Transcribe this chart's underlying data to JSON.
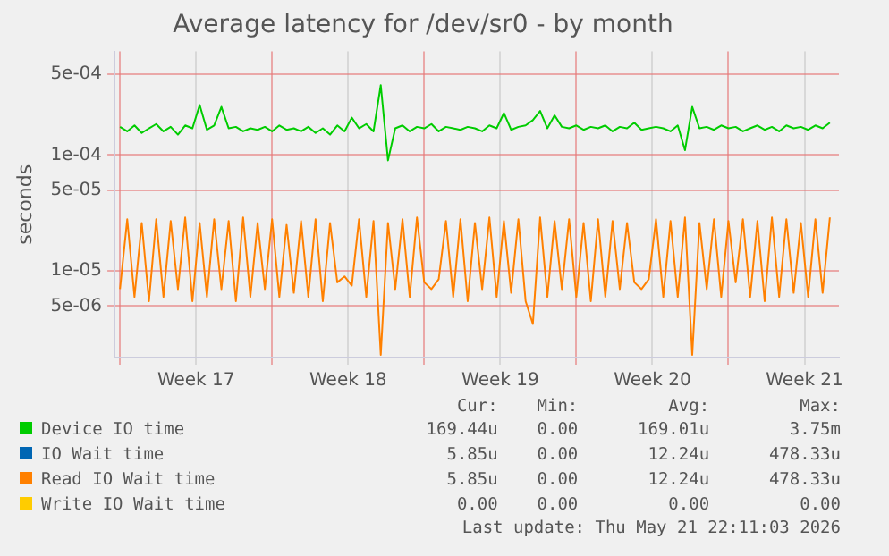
{
  "chart_data": {
    "type": "line",
    "title": "Average latency for /dev/sr0 - by month",
    "ylabel": "seconds",
    "log": "y",
    "grid": true,
    "legend": "bottom",
    "marker": "none",
    "line_style": "solid",
    "x": [
      "2026-04-20T00:00",
      "2026-04-20T08:00",
      "2026-04-20T16:00",
      "2026-04-21T00:00",
      "2026-04-21T08:00",
      "2026-04-21T16:00",
      "2026-04-22T00:00",
      "2026-04-22T08:00",
      "2026-04-22T16:00",
      "2026-04-23T00:00",
      "2026-04-23T08:00",
      "2026-04-23T16:00",
      "2026-04-24T00:00",
      "2026-04-24T08:00",
      "2026-04-24T16:00",
      "2026-04-25T00:00",
      "2026-04-25T08:00",
      "2026-04-25T16:00",
      "2026-04-26T00:00",
      "2026-04-26T08:00",
      "2026-04-26T16:00",
      "2026-04-27T00:00",
      "2026-04-27T08:00",
      "2026-04-27T16:00",
      "2026-04-28T00:00",
      "2026-04-28T08:00",
      "2026-04-28T16:00",
      "2026-04-29T00:00",
      "2026-04-29T08:00",
      "2026-04-29T16:00",
      "2026-04-30T00:00",
      "2026-04-30T08:00",
      "2026-04-30T16:00",
      "2026-05-01T00:00",
      "2026-05-01T08:00",
      "2026-05-01T16:00",
      "2026-05-02T00:00",
      "2026-05-02T08:00",
      "2026-05-02T16:00",
      "2026-05-03T00:00",
      "2026-05-03T08:00",
      "2026-05-03T16:00",
      "2026-05-04T00:00",
      "2026-05-04T08:00",
      "2026-05-04T16:00",
      "2026-05-05T00:00",
      "2026-05-05T08:00",
      "2026-05-05T16:00",
      "2026-05-06T00:00",
      "2026-05-06T08:00",
      "2026-05-06T16:00",
      "2026-05-07T00:00",
      "2026-05-07T08:00",
      "2026-05-07T16:00",
      "2026-05-08T00:00",
      "2026-05-08T08:00",
      "2026-05-08T16:00",
      "2026-05-09T00:00",
      "2026-05-09T08:00",
      "2026-05-09T16:00",
      "2026-05-10T00:00",
      "2026-05-10T08:00",
      "2026-05-10T16:00",
      "2026-05-11T00:00",
      "2026-05-11T08:00",
      "2026-05-11T16:00",
      "2026-05-12T00:00",
      "2026-05-12T08:00",
      "2026-05-12T16:00",
      "2026-05-13T00:00",
      "2026-05-13T08:00",
      "2026-05-13T16:00",
      "2026-05-14T00:00",
      "2026-05-14T08:00",
      "2026-05-14T16:00",
      "2026-05-15T00:00",
      "2026-05-15T08:00",
      "2026-05-15T16:00",
      "2026-05-16T00:00",
      "2026-05-16T08:00",
      "2026-05-16T16:00",
      "2026-05-17T00:00",
      "2026-05-17T08:00",
      "2026-05-17T16:00",
      "2026-05-18T00:00",
      "2026-05-18T08:00",
      "2026-05-18T16:00",
      "2026-05-19T00:00",
      "2026-05-19T08:00",
      "2026-05-19T16:00",
      "2026-05-20T00:00",
      "2026-05-20T08:00",
      "2026-05-20T16:00",
      "2026-05-21T00:00",
      "2026-05-21T08:00",
      "2026-05-21T16:00",
      "2026-05-22T00:00",
      "2026-05-22T08:00",
      "2026-05-22T16:00"
    ],
    "xlim": [
      "2026-04-19T18:00",
      "2026-05-23T02:00"
    ],
    "xticks": [
      {
        "value": "2026-04-20T00:00",
        "label": null
      },
      {
        "value": "2026-04-23T12:00",
        "label": "Week 17"
      },
      {
        "value": "2026-04-27T00:00",
        "label": null
      },
      {
        "value": "2026-04-30T12:00",
        "label": "Week 18"
      },
      {
        "value": "2026-05-04T00:00",
        "label": null
      },
      {
        "value": "2026-05-07T12:00",
        "label": "Week 19"
      },
      {
        "value": "2026-05-11T00:00",
        "label": null
      },
      {
        "value": "2026-05-14T12:00",
        "label": "Week 20"
      },
      {
        "value": "2026-05-18T00:00",
        "label": null
      },
      {
        "value": "2026-05-21T12:00",
        "label": "Week 21"
      }
    ],
    "ylim": [
      1.8e-06,
      0.00078
    ],
    "yticks": [
      {
        "value": 5e-06,
        "label": "5e-06"
      },
      {
        "value": 1e-05,
        "label": "1e-05"
      },
      {
        "value": 5e-05,
        "label": "5e-05"
      },
      {
        "value": 0.0001,
        "label": "1e-04"
      },
      {
        "value": 0.0005,
        "label": "5e-04"
      }
    ],
    "series": [
      {
        "name": "Device IO time",
        "color": "#00cc00",
        "values": [
          0.000175,
          0.00016,
          0.00018,
          0.000155,
          0.00017,
          0.000185,
          0.00016,
          0.000175,
          0.00015,
          0.00018,
          0.00017,
          0.00027,
          0.000165,
          0.00018,
          0.00026,
          0.00017,
          0.000175,
          0.00016,
          0.00017,
          0.000165,
          0.000175,
          0.00016,
          0.00018,
          0.000165,
          0.00017,
          0.00016,
          0.000175,
          0.000155,
          0.00017,
          0.00015,
          0.00018,
          0.00016,
          0.00021,
          0.00017,
          0.000185,
          0.00016,
          0.0004,
          9e-05,
          0.00017,
          0.00018,
          0.00016,
          0.000175,
          0.00017,
          0.000185,
          0.00016,
          0.000175,
          0.00017,
          0.000165,
          0.000175,
          0.00017,
          0.00016,
          0.00018,
          0.00017,
          0.00023,
          0.000165,
          0.000175,
          0.00018,
          0.0002,
          0.00024,
          0.00017,
          0.00022,
          0.000175,
          0.00017,
          0.00018,
          0.000165,
          0.000175,
          0.00017,
          0.00018,
          0.00016,
          0.000175,
          0.00017,
          0.00019,
          0.000165,
          0.00017,
          0.000175,
          0.00017,
          0.00016,
          0.00018,
          0.00011,
          0.00026,
          0.00017,
          0.000175,
          0.000165,
          0.00018,
          0.00017,
          0.000175,
          0.00016,
          0.00017,
          0.00018,
          0.000165,
          0.000175,
          0.00016,
          0.00018,
          0.00017,
          0.000175,
          0.000165,
          0.00018,
          0.00017,
          0.00019
        ]
      },
      {
        "name": "IO Wait time",
        "color": "#0066b3",
        "values": [
          null,
          null,
          null,
          null,
          null,
          null,
          null,
          null,
          null,
          null,
          null,
          null,
          null,
          null,
          null,
          null,
          null,
          null,
          null,
          null,
          null,
          null,
          null,
          null,
          null,
          null,
          null,
          null,
          null,
          null,
          null,
          null,
          null,
          null,
          null,
          null,
          null,
          null,
          null,
          null,
          null,
          null,
          null,
          null,
          null,
          null,
          null,
          null,
          null,
          null,
          null,
          null,
          null,
          null,
          null,
          null,
          null,
          null,
          null,
          null,
          null,
          null,
          null,
          null,
          null,
          null,
          null,
          null,
          null,
          null,
          null,
          null,
          null,
          null,
          null,
          null,
          null,
          null,
          null,
          null,
          null,
          null,
          null,
          null,
          null,
          null,
          null,
          null,
          null,
          null,
          null,
          null,
          null,
          null,
          null,
          null,
          null,
          null,
          null
        ]
      },
      {
        "name": "Read IO Wait time",
        "color": "#ff8000",
        "values": [
          7e-06,
          2.8e-05,
          6e-06,
          2.6e-05,
          5.5e-06,
          2.8e-05,
          6e-06,
          2.7e-05,
          7e-06,
          2.9e-05,
          5.5e-06,
          2.6e-05,
          6e-06,
          2.8e-05,
          7e-06,
          2.7e-05,
          5.5e-06,
          2.9e-05,
          6e-06,
          2.6e-05,
          7e-06,
          2.8e-05,
          6e-06,
          2.5e-05,
          6.5e-06,
          2.7e-05,
          6e-06,
          2.8e-05,
          5.5e-06,
          2.6e-05,
          8e-06,
          9e-06,
          7.5e-06,
          2.8e-05,
          6e-06,
          2.7e-05,
          1.9e-06,
          2.6e-05,
          7e-06,
          2.8e-05,
          6e-06,
          2.9e-05,
          8e-06,
          7e-06,
          8.5e-06,
          2.7e-05,
          6e-06,
          2.8e-05,
          5.5e-06,
          2.6e-05,
          7e-06,
          2.9e-05,
          6e-06,
          2.7e-05,
          6.5e-06,
          2.8e-05,
          5.5e-06,
          3.5e-06,
          2.9e-05,
          6e-06,
          2.7e-05,
          7e-06,
          2.8e-05,
          6e-06,
          2.6e-05,
          5.5e-06,
          2.8e-05,
          6e-06,
          2.7e-05,
          7e-06,
          2.6e-05,
          8e-06,
          7e-06,
          8.5e-06,
          2.8e-05,
          6e-06,
          2.7e-05,
          6e-06,
          2.9e-05,
          1.9e-06,
          2.6e-05,
          7e-06,
          2.8e-05,
          6e-06,
          2.7e-05,
          8e-06,
          2.8e-05,
          6e-06,
          2.7e-05,
          5.5e-06,
          2.9e-05,
          6e-06,
          2.8e-05,
          6.5e-06,
          2.6e-05,
          6e-06,
          2.8e-05,
          6.5e-06,
          2.9e-05
        ]
      },
      {
        "name": "Write IO Wait time",
        "color": "#ffcc00",
        "values": [
          null,
          null,
          null,
          null,
          null,
          null,
          null,
          null,
          null,
          null,
          null,
          null,
          null,
          null,
          null,
          null,
          null,
          null,
          null,
          null,
          null,
          null,
          null,
          null,
          null,
          null,
          null,
          null,
          null,
          null,
          null,
          null,
          null,
          null,
          null,
          null,
          null,
          null,
          null,
          null,
          null,
          null,
          null,
          null,
          null,
          null,
          null,
          null,
          null,
          null,
          null,
          null,
          null,
          null,
          null,
          null,
          null,
          null,
          null,
          null,
          null,
          null,
          null,
          null,
          null,
          null,
          null,
          null,
          null,
          null,
          null,
          null,
          null,
          null,
          null,
          null,
          null,
          null,
          null,
          null,
          null,
          null,
          null,
          null,
          null,
          null,
          null,
          null,
          null,
          null,
          null,
          null,
          null,
          null,
          null,
          null,
          null,
          null,
          null
        ]
      }
    ],
    "annotations": [
      "Cur:",
      "Min:",
      "Avg:",
      "Max:",
      "169.44u",
      "0.00",
      "169.01u",
      "3.75m",
      "5.85u",
      "0.00",
      "12.24u",
      "478.33u",
      "5.85u",
      "0.00",
      "12.24u",
      "478.33u",
      "0.00",
      "0.00",
      "0.00",
      "0.00",
      "Last update: Thu May 21 22:11:03 2026"
    ]
  }
}
